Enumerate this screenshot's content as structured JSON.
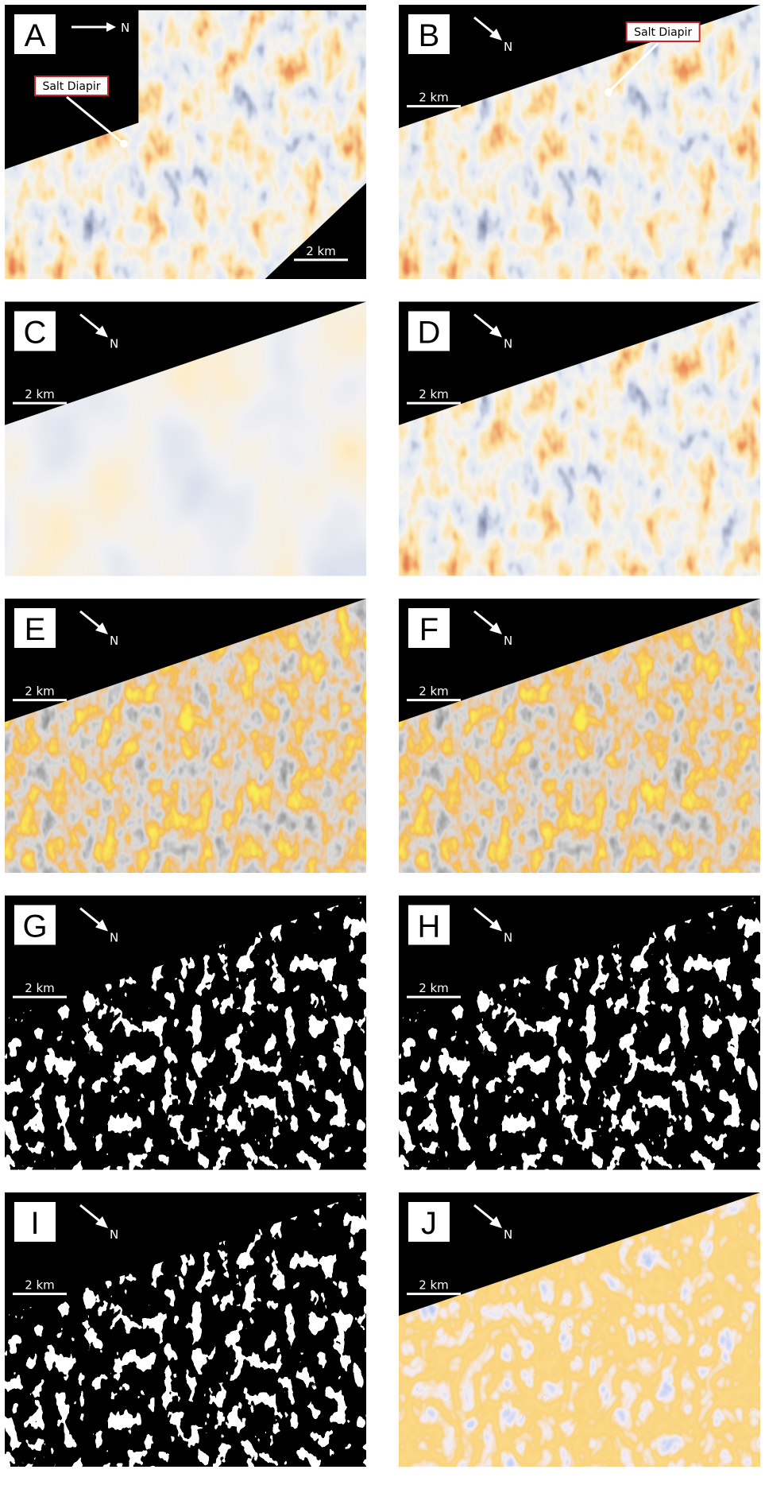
{
  "panels": [
    {
      "label": "A",
      "north": "N",
      "scale": "2 km",
      "annotation": "Salt Diapir"
    },
    {
      "label": "B",
      "north": "N",
      "scale": "2 km",
      "annotation": "Salt Diapir"
    },
    {
      "label": "C",
      "north": "N",
      "scale": "2 km"
    },
    {
      "label": "D",
      "north": "N",
      "scale": "2 km"
    },
    {
      "label": "E",
      "north": "N",
      "scale": "2 km"
    },
    {
      "label": "F",
      "north": "N",
      "scale": "2 km"
    },
    {
      "label": "G",
      "north": "N",
      "scale": "2 km"
    },
    {
      "label": "H",
      "north": "N",
      "scale": "2 km"
    },
    {
      "label": "I",
      "north": "N",
      "scale": "2 km"
    },
    {
      "label": "J",
      "north": "N",
      "scale": "2 km"
    }
  ]
}
